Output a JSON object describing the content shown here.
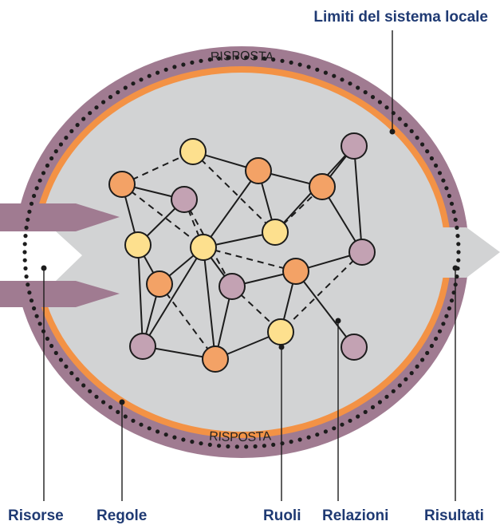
{
  "labels": {
    "boundary": "Limiti del sistema locale",
    "response_top": "RISPOSTA",
    "response_bottom": "RISPOSTA",
    "resources": "Risorse",
    "rules": "Regole",
    "roles": "Ruoli",
    "relations": "Relazioni",
    "results": "Risultati"
  },
  "colors": {
    "outer_ring": "#a07b91",
    "orange_ring": "#f39245",
    "inner_fill": "#d2d3d4",
    "node_orange": "#f3a266",
    "node_yellow": "#fde08e",
    "node_mauve": "#c3a2b3",
    "node_stroke": "#1c1c1c",
    "dots": "#1c1c1c",
    "callout_text": "#1f3a73",
    "output_arrow": "#d2d3d4",
    "input_arrow": "#a07b91"
  }
}
